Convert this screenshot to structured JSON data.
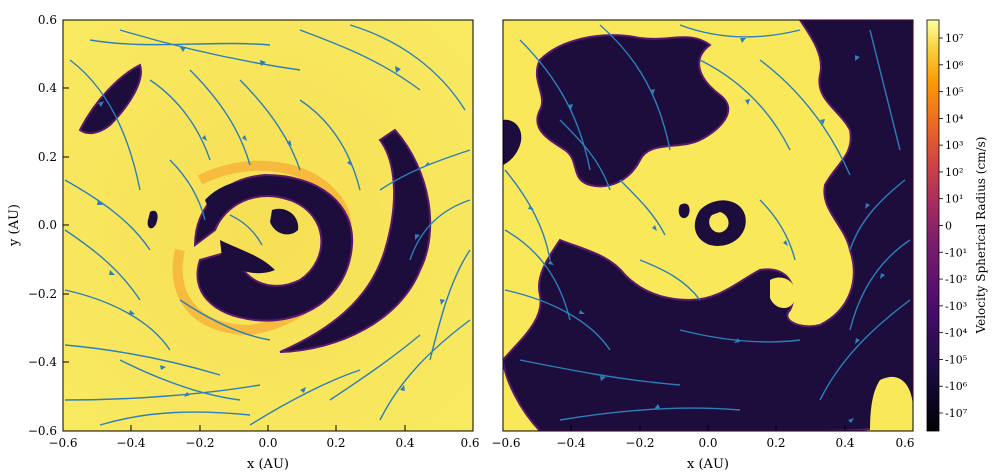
{
  "chart_data": [
    {
      "type": "heatmap",
      "panel": "left",
      "xlabel": "x  (AU)",
      "ylabel": "y  (AU)",
      "xlim": [
        -0.6,
        0.6
      ],
      "ylim": [
        -0.6,
        0.6
      ],
      "xticks": [
        "−0.6",
        "−0.4",
        "−0.2",
        "0.0",
        "0.2",
        "0.4",
        "0.6"
      ],
      "yticks": [
        "−0.6",
        "−0.4",
        "−0.2",
        "0.0",
        "0.2",
        "0.4",
        "0.6"
      ],
      "overlay": "streamlines",
      "regions": [
        {
          "kind": "inflow-ring",
          "cx": 0.0,
          "cy": 0.0,
          "r_inner": 0.12,
          "r_outer": 0.2
        },
        {
          "kind": "inflow-arc",
          "cx": 0.3,
          "cy": 0.05,
          "r": 0.32
        },
        {
          "kind": "inflow-blob",
          "cx": -0.46,
          "cy": 0.38
        }
      ]
    },
    {
      "type": "heatmap",
      "panel": "right",
      "xlabel": "x  (AU)",
      "ylabel": "",
      "xlim": [
        -0.6,
        0.6
      ],
      "ylim": [
        -0.6,
        0.6
      ],
      "xticks": [
        "−0.6",
        "−0.4",
        "−0.2",
        "0.0",
        "0.2",
        "0.4",
        "0.6"
      ],
      "overlay": "streamlines",
      "regions": [
        {
          "kind": "inflow-large",
          "side": "lower-right and left"
        },
        {
          "kind": "inner-spiral",
          "cx": 0.02,
          "cy": 0.02,
          "r": 0.08
        }
      ]
    }
  ],
  "colorbar": {
    "label": "Velocity Spherical Radius  (cm/s)",
    "scale": "symlog",
    "ticks": [
      "10⁷",
      "10⁶",
      "10⁵",
      "10⁴",
      "10³",
      "10²",
      "10¹",
      "0",
      "-10¹",
      "-10²",
      "-10³",
      "-10⁴",
      "-10⁵",
      "-10⁶",
      "-10⁷"
    ],
    "range": [
      "-10⁷",
      "10⁷"
    ]
  },
  "colors": {
    "positive": "#f9e95a",
    "positive_edge": "#fb9a2a",
    "negative": "#1d0d3c",
    "negative_edge": "#5b1a6e",
    "streamline": "#2c7fb8"
  }
}
